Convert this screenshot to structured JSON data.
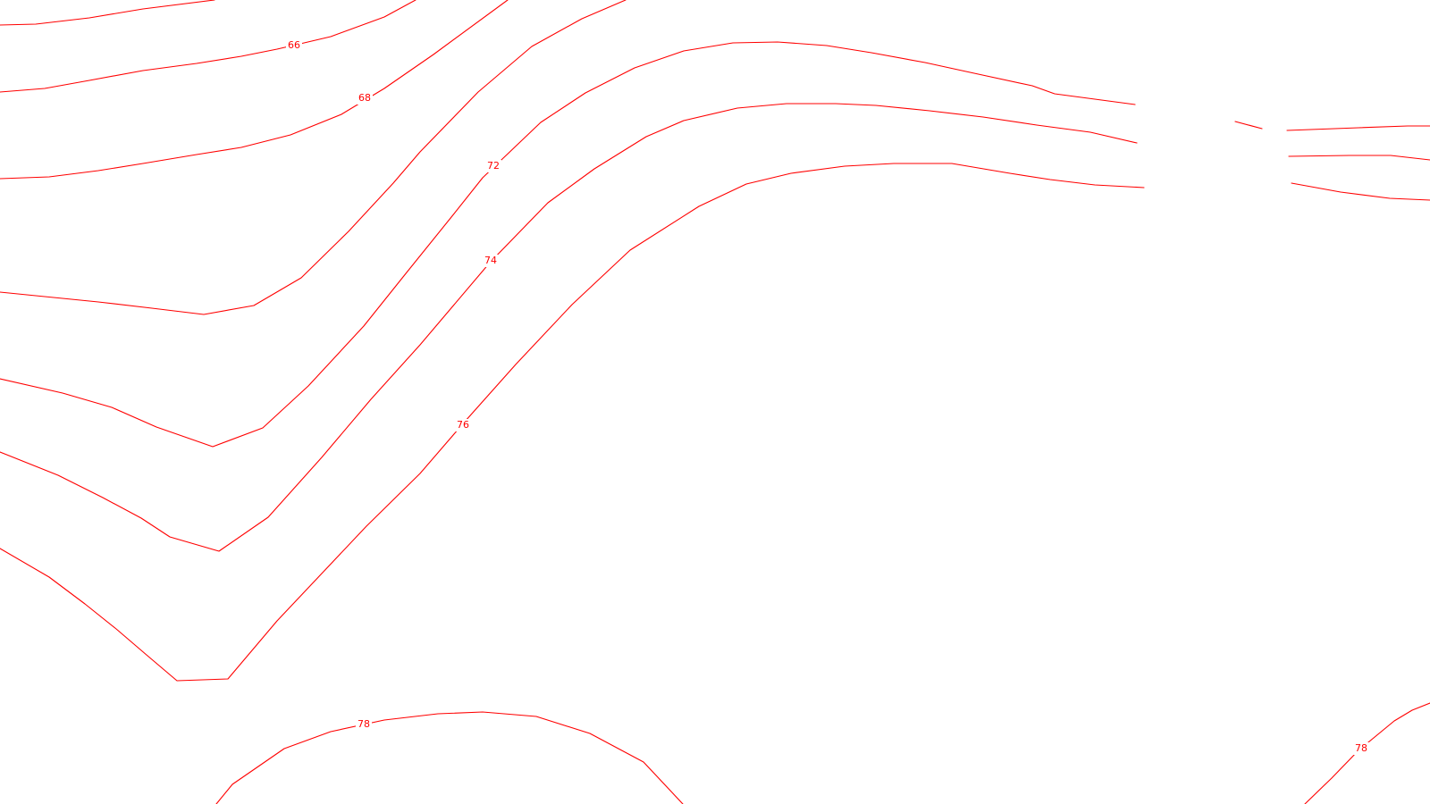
{
  "map": {
    "line_color": "#ff0000",
    "background_color": "#ffffff",
    "contour_labels": [
      {
        "id": "66",
        "text": "66"
      },
      {
        "id": "68",
        "text": "68"
      },
      {
        "id": "72",
        "text": "72"
      },
      {
        "id": "74",
        "text": "74"
      },
      {
        "id": "76",
        "text": "76"
      },
      {
        "id": "78a",
        "text": "78"
      },
      {
        "id": "78b",
        "text": "78"
      }
    ]
  }
}
